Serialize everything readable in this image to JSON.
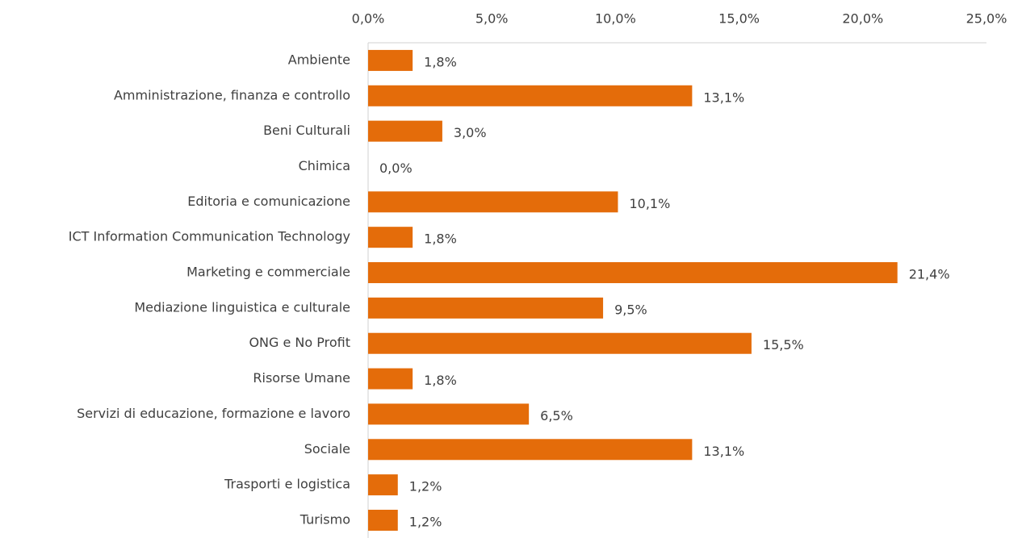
{
  "chart_data": {
    "type": "bar",
    "orientation": "horizontal",
    "categories": [
      "Ambiente",
      "Amministrazione, finanza e controllo",
      "Beni Culturali",
      "Chimica",
      "Editoria e comunicazione",
      "ICT Information Communication Technology",
      "Marketing e commerciale",
      "Mediazione linguistica e culturale",
      "ONG e No Profit",
      "Risorse Umane",
      "Servizi di educazione, formazione e lavoro",
      "Sociale",
      "Trasporti e logistica",
      "Turismo"
    ],
    "values": [
      1.8,
      13.1,
      3.0,
      0.0,
      10.1,
      1.8,
      21.4,
      9.5,
      15.5,
      1.8,
      6.5,
      13.1,
      1.2,
      1.2
    ],
    "value_labels": [
      "1,8%",
      "13,1%",
      "3,0%",
      "0,0%",
      "10,1%",
      "1,8%",
      "21,4%",
      "9,5%",
      "15,5%",
      "1,8%",
      "6,5%",
      "13,1%",
      "1,2%",
      "1,2%"
    ],
    "color": "#e46c0a",
    "xlim": [
      0,
      25
    ],
    "xticks": [
      {
        "value": 0,
        "label": "0,0%"
      },
      {
        "value": 5,
        "label": "5,0%"
      },
      {
        "value": 10,
        "label": "10,0%"
      },
      {
        "value": 15,
        "label": "15,0%"
      },
      {
        "value": 20,
        "label": "20,0%"
      },
      {
        "value": 25,
        "label": "25,0%"
      }
    ],
    "axis_position": "top",
    "grid": false
  }
}
